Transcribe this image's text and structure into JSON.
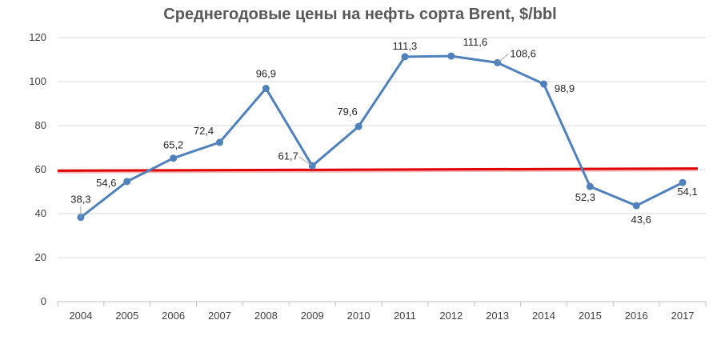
{
  "chart_data": {
    "type": "line",
    "title": "Среднегодовые цены на нефть сорта Brent, $/bbl",
    "xlabel": "",
    "ylabel": "",
    "categories": [
      "2004",
      "2005",
      "2006",
      "2007",
      "2008",
      "2009",
      "2010",
      "2011",
      "2012",
      "2013",
      "2014",
      "2015",
      "2016",
      "2017"
    ],
    "series": [
      {
        "values": [
          38.3,
          54.6,
          65.2,
          72.4,
          96.9,
          61.7,
          79.6,
          111.3,
          111.6,
          108.6,
          98.9,
          52.3,
          43.6,
          54.1
        ],
        "labels": [
          "38,3",
          "54,6",
          "65,2",
          "72,4",
          "96,9",
          "61,7",
          "79,6",
          "111,3",
          "111,6",
          "108,6",
          "98,9",
          "52,3",
          "43,6",
          "54,1"
        ],
        "color": "#4f81bd"
      }
    ],
    "reference_line": {
      "y_start": 59.5,
      "y_end": 60.5,
      "color": "#e00000"
    },
    "ylim": [
      0,
      120
    ],
    "yticks": [
      0,
      20,
      40,
      60,
      80,
      100,
      120
    ],
    "ytick_labels": [
      "0",
      "20",
      "40",
      "60",
      "80",
      "100",
      "120"
    ],
    "grid": true,
    "legend": "none"
  }
}
